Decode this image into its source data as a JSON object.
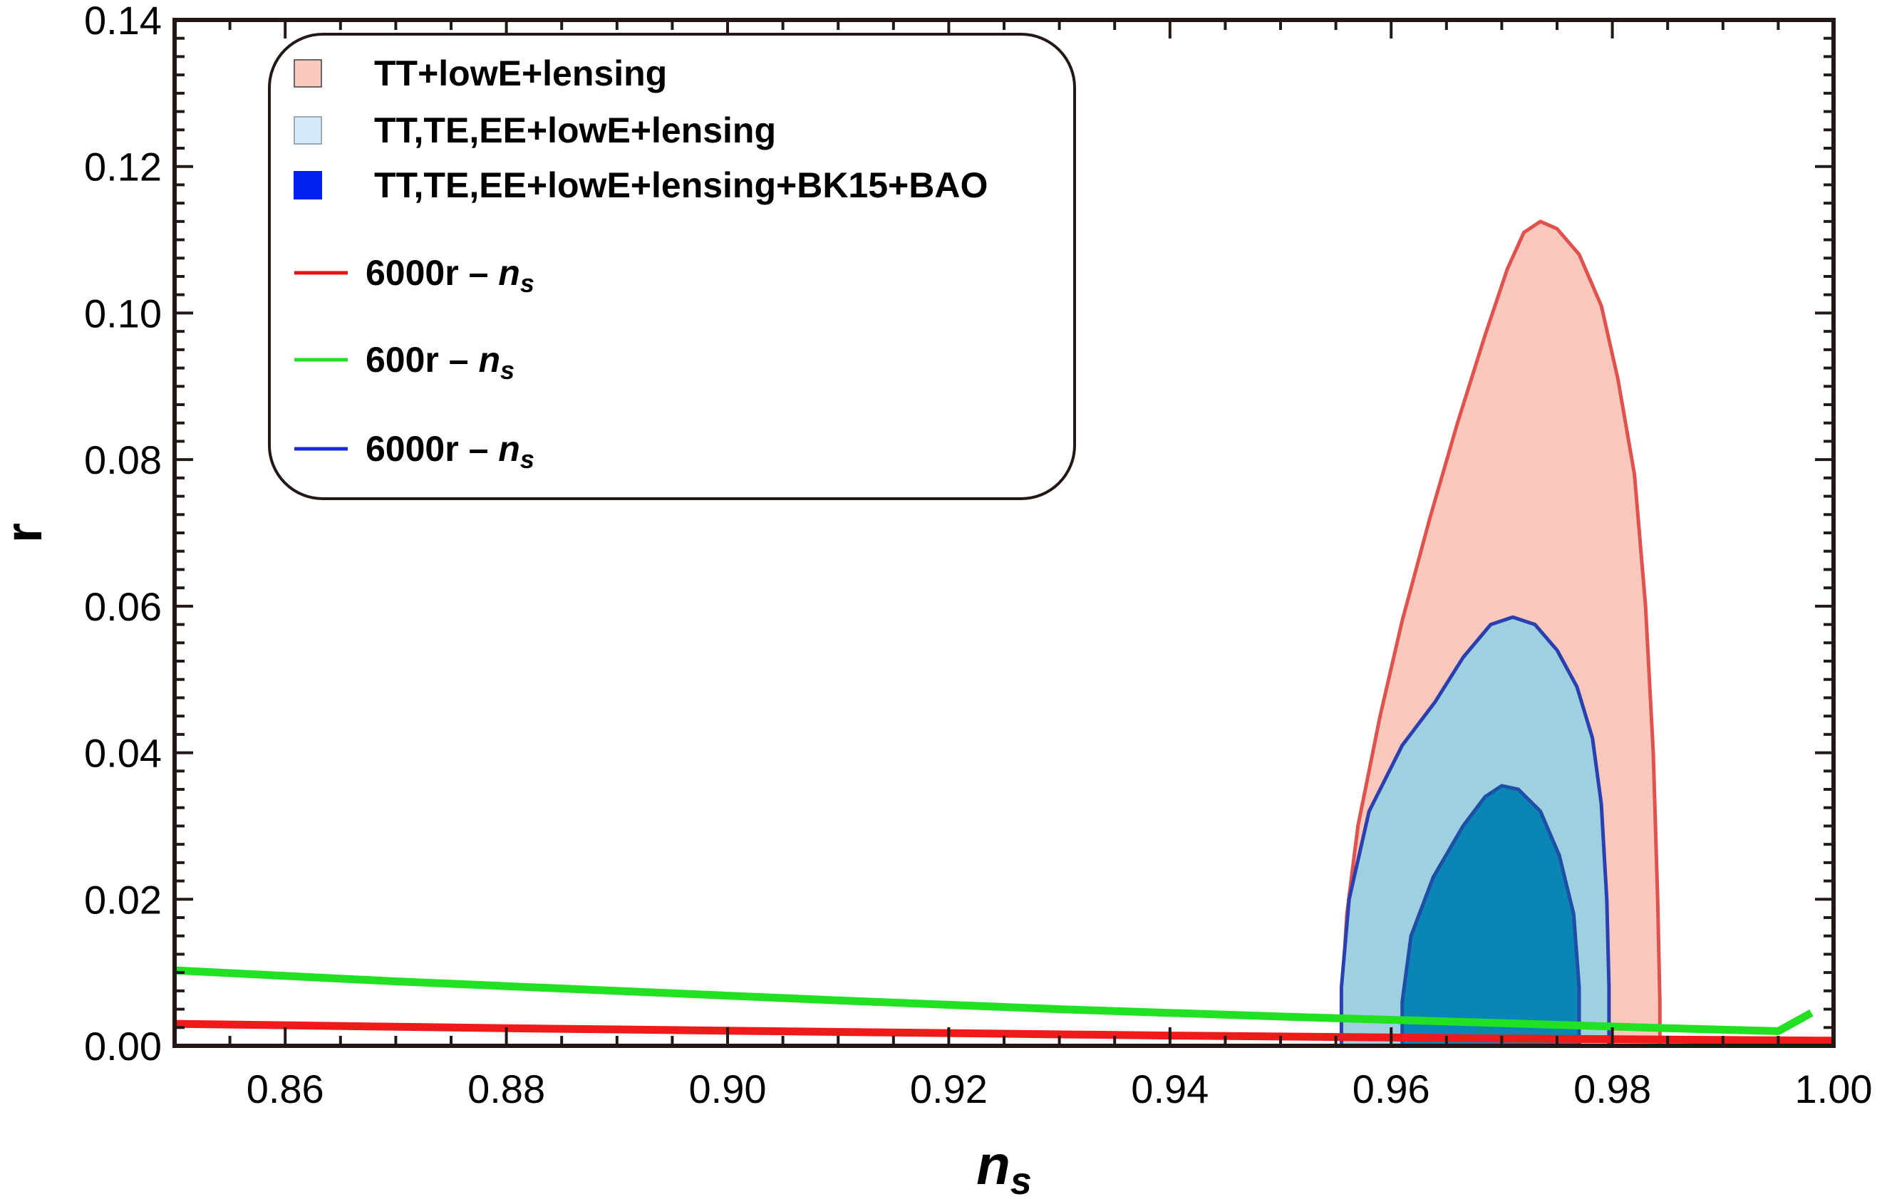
{
  "chart_data": {
    "type": "line",
    "title": "",
    "xlabel": {
      "base": "n",
      "sub": "s"
    },
    "ylabel": "r",
    "xlim": [
      0.85,
      1.0
    ],
    "ylim": [
      0.0,
      0.14
    ],
    "grid": false,
    "x_ticks": [
      "0.86",
      "0.88",
      "0.90",
      "0.92",
      "0.94",
      "0.96",
      "0.98",
      "1.00"
    ],
    "x_tick_values": [
      0.86,
      0.88,
      0.9,
      0.92,
      0.94,
      0.96,
      0.98,
      1.0
    ],
    "y_ticks": [
      "0.00",
      "0.02",
      "0.04",
      "0.06",
      "0.08",
      "0.10",
      "0.12",
      "0.14"
    ],
    "y_tick_values": [
      0.0,
      0.02,
      0.04,
      0.06,
      0.08,
      0.1,
      0.12,
      0.14
    ],
    "legend_position": "top-left",
    "regions": [
      {
        "name": "TT+lowE+lensing",
        "fill": "#f9c8bd",
        "stroke": "#e0524d",
        "boundary": [
          [
            0.9555,
            0.0
          ],
          [
            0.9555,
            0.006
          ],
          [
            0.956,
            0.018
          ],
          [
            0.957,
            0.03
          ],
          [
            0.959,
            0.045
          ],
          [
            0.961,
            0.058
          ],
          [
            0.9635,
            0.072
          ],
          [
            0.966,
            0.085
          ],
          [
            0.9685,
            0.097
          ],
          [
            0.9705,
            0.106
          ],
          [
            0.972,
            0.111
          ],
          [
            0.9735,
            0.1125
          ],
          [
            0.975,
            0.1115
          ],
          [
            0.977,
            0.108
          ],
          [
            0.979,
            0.101
          ],
          [
            0.9805,
            0.091
          ],
          [
            0.982,
            0.078
          ],
          [
            0.983,
            0.06
          ],
          [
            0.9837,
            0.04
          ],
          [
            0.9841,
            0.02
          ],
          [
            0.9843,
            0.006
          ],
          [
            0.9843,
            0.0
          ]
        ]
      },
      {
        "name": "TT,TE,EE+lowE+lensing",
        "fill": "#9ed0e0",
        "stroke": "#2a3fb0",
        "boundary": [
          [
            0.9555,
            0.0
          ],
          [
            0.9555,
            0.008
          ],
          [
            0.9562,
            0.02
          ],
          [
            0.958,
            0.032
          ],
          [
            0.961,
            0.041
          ],
          [
            0.964,
            0.047
          ],
          [
            0.9665,
            0.053
          ],
          [
            0.969,
            0.0575
          ],
          [
            0.971,
            0.0585
          ],
          [
            0.973,
            0.0575
          ],
          [
            0.975,
            0.054
          ],
          [
            0.9768,
            0.049
          ],
          [
            0.9782,
            0.042
          ],
          [
            0.979,
            0.033
          ],
          [
            0.9795,
            0.02
          ],
          [
            0.9797,
            0.008
          ],
          [
            0.9797,
            0.0
          ]
        ]
      },
      {
        "name": "TT,TE,EE+lowE+lensing+BK15+BAO",
        "fill": "#0a86b5",
        "stroke": "#1e4fa8",
        "boundary": [
          [
            0.961,
            0.0
          ],
          [
            0.961,
            0.006
          ],
          [
            0.9618,
            0.015
          ],
          [
            0.9638,
            0.023
          ],
          [
            0.9665,
            0.03
          ],
          [
            0.9685,
            0.034
          ],
          [
            0.97,
            0.0355
          ],
          [
            0.9715,
            0.035
          ],
          [
            0.9735,
            0.032
          ],
          [
            0.9752,
            0.026
          ],
          [
            0.9765,
            0.018
          ],
          [
            0.977,
            0.008
          ],
          [
            0.977,
            0.0
          ]
        ]
      }
    ],
    "series": [
      {
        "name": "600r – n_s",
        "color": "#22e022",
        "x": [
          0.85,
          0.87,
          0.89,
          0.91,
          0.93,
          0.95,
          0.97,
          0.985,
          0.995,
          0.998
        ],
        "y": [
          0.0103,
          0.0088,
          0.0075,
          0.0062,
          0.005,
          0.004,
          0.0031,
          0.0024,
          0.002,
          0.0045
        ]
      },
      {
        "name": "6000r – n_s",
        "color": "#f01a1a",
        "x": [
          0.85,
          0.88,
          0.91,
          0.94,
          0.97,
          1.0
        ],
        "y": [
          0.003,
          0.0024,
          0.0019,
          0.0014,
          0.001,
          0.0007
        ]
      }
    ],
    "legend": [
      {
        "type": "patch",
        "label": "TT+lowE+lensing",
        "color": "#f9c8bd",
        "edge": "#666666"
      },
      {
        "type": "patch",
        "label": "TT,TE,EE+lowE+lensing",
        "color": "#d6ebfa",
        "edge": "#9aaab8"
      },
      {
        "type": "patch",
        "label": "TT,TE,EE+lowE+lensing+BK15+BAO",
        "color": "#0022ee",
        "edge": "#0022ee"
      },
      {
        "type": "line",
        "label": "6000r – ",
        "label_math": "n",
        "label_sub": "s",
        "color": "#e01414"
      },
      {
        "type": "line",
        "label": "600r – ",
        "label_math": "n",
        "label_sub": "s",
        "color": "#22e022"
      },
      {
        "type": "line",
        "label": "6000r – ",
        "label_math": "n",
        "label_sub": "s",
        "color": "#1a2ad8"
      }
    ]
  }
}
